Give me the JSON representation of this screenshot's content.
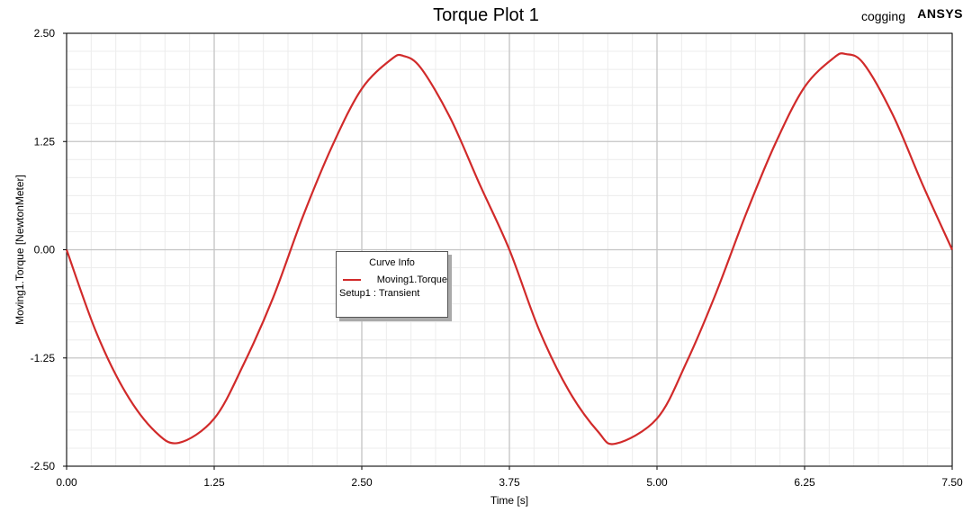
{
  "header": {
    "title": "Torque Plot 1",
    "design_name": "cogging",
    "brand": "ANSYS"
  },
  "legend": {
    "title": "Curve Info",
    "series_name": "Moving1.Torque",
    "subtitle": "Setup1 : Transient"
  },
  "chart_data": {
    "type": "line",
    "xlabel": "Time [s]",
    "ylabel": "Moving1.Torque [NewtonMeter]",
    "xlim": [
      0,
      7.5
    ],
    "ylim": [
      -2.5,
      2.5
    ],
    "xticks": [
      "0.00",
      "1.25",
      "2.50",
      "3.75",
      "5.00",
      "6.25",
      "7.50"
    ],
    "yticks": [
      "2.50",
      "1.25",
      "0.00",
      "-1.25",
      "-2.50"
    ],
    "grid": true,
    "legend_position": "center-left",
    "series": [
      {
        "name": "Moving1.Torque",
        "color": "#d12a2a",
        "x": [
          0,
          0.25,
          0.5,
          0.75,
          0.95,
          1.25,
          1.5,
          1.75,
          2.0,
          2.25,
          2.5,
          2.75,
          2.85,
          3.0,
          3.25,
          3.5,
          3.75,
          4.0,
          4.25,
          4.5,
          4.65,
          5.0,
          5.25,
          5.5,
          5.75,
          6.0,
          6.25,
          6.5,
          6.6,
          6.75,
          7.0,
          7.25,
          7.5
        ],
        "y": [
          0,
          -0.95,
          -1.65,
          -2.1,
          -2.23,
          -1.95,
          -1.32,
          -0.55,
          0.38,
          1.2,
          1.86,
          2.2,
          2.24,
          2.1,
          1.52,
          0.75,
          0.0,
          -0.92,
          -1.62,
          -2.1,
          -2.24,
          -1.95,
          -1.3,
          -0.5,
          0.4,
          1.22,
          1.88,
          2.22,
          2.26,
          2.15,
          1.55,
          0.75,
          0.0
        ]
      }
    ]
  }
}
